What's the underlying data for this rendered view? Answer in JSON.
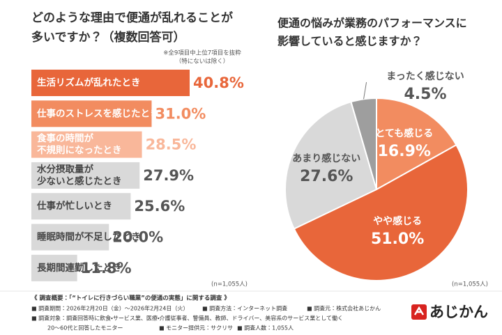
{
  "chart_data": [
    {
      "type": "bar",
      "title": [
        "どのような理由で便通が乱れることが",
        "多いですか？（複数回答可）"
      ],
      "note": [
        "※全9項目中上位7項目を抜粋",
        "（特にないは除く）"
      ],
      "categories": [
        [
          "生活リズムが乱れたとき"
        ],
        [
          "仕事のストレスを感じたとき"
        ],
        [
          "食事の時間が",
          "不規則になったとき"
        ],
        [
          "水分摂取量が",
          "少ないと感じたとき"
        ],
        [
          "仕事が忙しいとき"
        ],
        [
          "睡眠時間が不足したとき"
        ],
        [
          "長期間連勤したとき"
        ]
      ],
      "values": [
        40.8,
        31.0,
        28.5,
        27.9,
        25.6,
        20.0,
        11.8
      ],
      "value_labels": [
        "40.8%",
        "31.0%",
        "28.5%",
        "27.9%",
        "25.6%",
        "20.0%",
        "11.8%"
      ],
      "colors": [
        "#e8663a",
        "#f28c60",
        "#f9b79a",
        "#d9d9d9",
        "#d9d9d9",
        "#d9d9d9",
        "#d9d9d9"
      ],
      "value_label_colors": [
        "#e8663a",
        "#f28c60",
        "#f9b79a",
        "#555555",
        "#555555",
        "#555555",
        "#555555"
      ],
      "sample": "(n=1,055人)"
    },
    {
      "type": "pie",
      "title": [
        "便通の悩みが業務のパフォーマンスに",
        "影響していると感じますか？"
      ],
      "categories": [
        "とても感じる",
        "やや感じる",
        "あまり感じない",
        "まったく感じない"
      ],
      "values": [
        16.9,
        51.0,
        27.6,
        4.5
      ],
      "value_labels": [
        "16.9%",
        "51.0%",
        "27.6%",
        "4.5%"
      ],
      "colors": [
        "#f28c60",
        "#e8663a",
        "#d9d9d9",
        "#9e9e9e"
      ],
      "sample": "(n=1,055人)"
    }
  ],
  "footer": {
    "heading": "《 調査概要：「“トイレに行きづらい職業”の便通の実態」に関する調査 》",
    "rows": [
      [
        "■ 調査期間：2026年2月20日（金）～2026年2月24日（火）",
        "■ 調査方法：インターネット調査",
        "■ 調査元：株式会社あじかん"
      ],
      [
        "■ 調査対象：調査回答時に飲食・サービス業、医療・介護従事者、警備員、教師、ドライバー、美容系のサービス業として働く"
      ],
      [
        "20～60代と回答したモニター",
        "■ モニター提供元：サクリサ",
        "■ 調査人数：1,055人"
      ]
    ]
  },
  "logo": "あじかん"
}
